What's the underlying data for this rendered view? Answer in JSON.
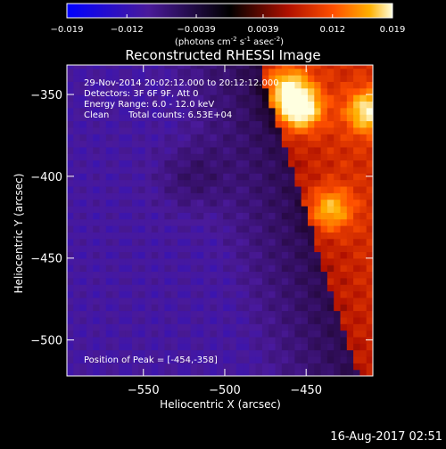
{
  "chart_data": {
    "type": "heatmap",
    "title": "Reconstructed RHESSI Image",
    "xlabel": "Heliocentric X (arcsec)",
    "ylabel": "Heliocentric Y (arcsec)",
    "xlim": [
      -597,
      -409
    ],
    "ylim": [
      -522,
      -332
    ],
    "xticks": [
      -550,
      -500,
      -450
    ],
    "yticks": [
      -350,
      -400,
      -450,
      -500
    ],
    "colorbar": {
      "range": [
        -0.019,
        0.019
      ],
      "tick_labels": [
        "-0.019",
        "-0.012",
        "-0.0039",
        "0.0039",
        "0.012",
        "0.019"
      ],
      "label_prefix": "(photons cm",
      "label_exp1": "-2",
      "label_mid": " s",
      "label_exp2": "-1",
      "label_mid2": " asec",
      "label_exp3": "-2",
      "label_suffix": ")"
    },
    "annotations": {
      "time_range": "29-Nov-2014 20:02:12.000 to 20:12:12.000",
      "detectors": "Detectors: 3F 6F 9F, Att 0",
      "energy": "Energy Range: 6.0 - 12.0 keV",
      "method": "Clean",
      "counts": "Total counts: 6.53E+04",
      "peak": "Position of Peak = [-454,-358]"
    },
    "sources": [
      {
        "x": -454,
        "y": -358,
        "peak": 0.019
      },
      {
        "x": -412,
        "y": -360,
        "peak": 0.014
      },
      {
        "x": -435,
        "y": -420,
        "peak": 0.011
      },
      {
        "x": -462,
        "y": -345,
        "peak": 0.012
      }
    ],
    "limb": {
      "x0": -478,
      "y0": -335,
      "x1": -418,
      "y1": -522
    }
  },
  "footer": {
    "date": "16-Aug-2017 02:51"
  }
}
